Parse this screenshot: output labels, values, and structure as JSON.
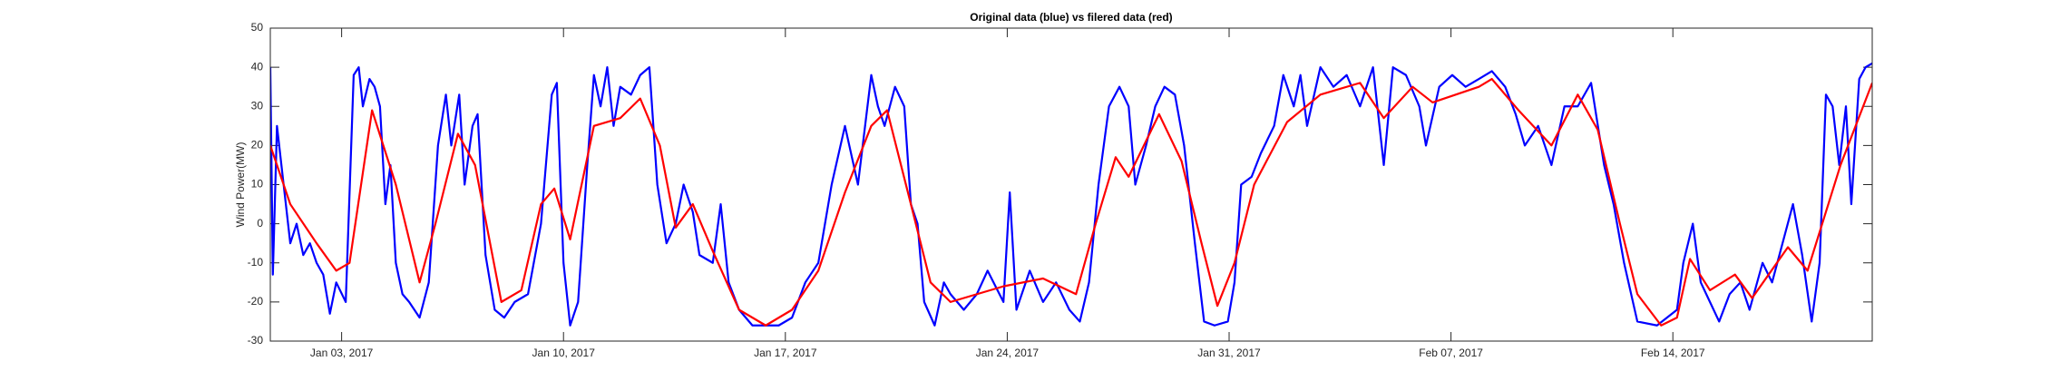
{
  "chart_data": {
    "type": "line",
    "title": "Original data (blue) vs filered data (red)",
    "y_label": "Wind Power(MW)",
    "xlim": [
      -0.25,
      50.29
    ],
    "xticks": [
      {
        "value": 2,
        "label": "Jan 03, 2017"
      },
      {
        "value": 9,
        "label": "Jan 10, 2017"
      },
      {
        "value": 16,
        "label": "Jan 17, 2017"
      },
      {
        "value": 23,
        "label": "Jan 24, 2017"
      },
      {
        "value": 30,
        "label": "Jan 31, 2017"
      },
      {
        "value": 37,
        "label": "Feb 07, 2017"
      },
      {
        "value": 44,
        "label": "Feb 14, 2017"
      }
    ],
    "ylim": [
      -30,
      50
    ],
    "yticks": [
      -30,
      -20,
      -10,
      0,
      10,
      20,
      30,
      40,
      50
    ],
    "grid": false,
    "series": [
      {
        "name": "Original data",
        "color": "#0000ff",
        "x": [
          -0.25,
          -0.17,
          -0.04,
          0.17,
          0.38,
          0.58,
          0.79,
          1.0,
          1.21,
          1.42,
          1.63,
          1.83,
          2.13,
          2.38,
          2.54,
          2.67,
          2.88,
          3.04,
          3.21,
          3.38,
          3.54,
          3.71,
          3.92,
          4.13,
          4.46,
          4.75,
          5.04,
          5.29,
          5.46,
          5.71,
          5.88,
          6.13,
          6.29,
          6.54,
          6.83,
          7.13,
          7.46,
          7.88,
          8.29,
          8.63,
          8.79,
          9.0,
          9.21,
          9.46,
          9.75,
          9.96,
          10.17,
          10.38,
          10.58,
          10.79,
          11.13,
          11.42,
          11.71,
          11.96,
          12.25,
          12.54,
          12.79,
          13.08,
          13.29,
          13.71,
          13.96,
          14.21,
          14.54,
          14.96,
          15.79,
          16.21,
          16.63,
          17.04,
          17.46,
          17.88,
          18.29,
          18.71,
          18.92,
          19.13,
          19.46,
          19.75,
          19.96,
          20.17,
          20.38,
          20.71,
          21.0,
          21.21,
          21.63,
          22.04,
          22.38,
          22.88,
          23.08,
          23.29,
          23.71,
          24.13,
          24.54,
          24.96,
          25.29,
          25.58,
          25.88,
          26.21,
          26.54,
          26.83,
          27.04,
          27.38,
          27.67,
          27.96,
          28.29,
          28.58,
          28.92,
          29.21,
          29.54,
          29.96,
          30.17,
          30.38,
          30.71,
          31.0,
          31.42,
          31.71,
          32.04,
          32.25,
          32.46,
          32.88,
          33.29,
          33.71,
          34.13,
          34.54,
          34.88,
          35.17,
          35.58,
          36.0,
          36.21,
          36.63,
          37.04,
          37.46,
          37.88,
          38.29,
          38.71,
          39.04,
          39.33,
          39.75,
          40.17,
          40.58,
          41.0,
          41.42,
          41.83,
          42.13,
          42.46,
          42.88,
          43.5,
          44.13,
          44.33,
          44.63,
          44.88,
          45.17,
          45.46,
          45.79,
          46.13,
          46.42,
          46.83,
          47.13,
          47.46,
          47.79,
          48.08,
          48.38,
          48.63,
          48.83,
          49.04,
          49.25,
          49.46,
          49.63,
          49.88,
          50.08,
          50.29
        ],
        "values": [
          40,
          -13,
          25,
          10,
          -5,
          0,
          -8,
          -5,
          -10,
          -13,
          -23,
          -15,
          -20,
          38,
          40,
          30,
          37,
          35,
          30,
          5,
          15,
          -10,
          -18,
          -20,
          -24,
          -15,
          20,
          33,
          20,
          33,
          10,
          25,
          28,
          -8,
          -22,
          -24,
          -20,
          -18,
          0,
          33,
          36,
          -10,
          -26,
          -20,
          15,
          38,
          30,
          40,
          25,
          35,
          33,
          38,
          40,
          10,
          -5,
          0,
          10,
          3,
          -8,
          -10,
          5,
          -15,
          -22,
          -26,
          -26,
          -24,
          -15,
          -10,
          10,
          25,
          10,
          38,
          30,
          25,
          35,
          30,
          5,
          0,
          -20,
          -26,
          -15,
          -18,
          -22,
          -18,
          -12,
          -20,
          8,
          -22,
          -12,
          -20,
          -15,
          -22,
          -25,
          -15,
          10,
          30,
          35,
          30,
          10,
          20,
          30,
          35,
          33,
          20,
          -5,
          -25,
          -26,
          -25,
          -15,
          10,
          12,
          18,
          25,
          38,
          30,
          38,
          25,
          40,
          35,
          38,
          30,
          40,
          15,
          40,
          38,
          30,
          20,
          35,
          38,
          35,
          37,
          39,
          35,
          28,
          20,
          25,
          15,
          30,
          30,
          36,
          15,
          5,
          -10,
          -25,
          -26,
          -22,
          -10,
          0,
          -15,
          -20,
          -25,
          -18,
          -15,
          -22,
          -10,
          -15,
          -5,
          5,
          -8,
          -25,
          -10,
          33,
          30,
          15,
          30,
          5,
          37,
          40,
          41
        ]
      },
      {
        "name": "Filtered data",
        "color": "#ff0000",
        "x": [
          -0.25,
          0.38,
          1.21,
          1.83,
          2.25,
          2.96,
          3.71,
          4.46,
          4.96,
          5.67,
          6.21,
          7.04,
          7.67,
          8.29,
          8.71,
          9.21,
          9.96,
          10.79,
          11.42,
          12.04,
          12.54,
          13.08,
          13.71,
          14.54,
          15.38,
          16.21,
          17.04,
          17.88,
          18.71,
          19.21,
          19.96,
          20.58,
          21.21,
          22.88,
          24.13,
          25.17,
          25.79,
          26.42,
          26.83,
          27.79,
          28.5,
          29.13,
          29.63,
          30.17,
          30.79,
          31.83,
          32.88,
          34.13,
          34.88,
          35.79,
          36.42,
          37.88,
          38.29,
          39.13,
          40.17,
          41.0,
          41.63,
          42.33,
          42.88,
          43.63,
          44.13,
          44.54,
          45.17,
          45.96,
          46.5,
          47.63,
          48.25,
          49.29,
          50.29
        ],
        "values": [
          20,
          5,
          -5,
          -12,
          -10,
          29,
          10,
          -15,
          0,
          23,
          15,
          -20,
          -17,
          5,
          9,
          -4,
          25,
          27,
          32,
          20,
          -1,
          5,
          -7,
          -22,
          -26,
          -22,
          -12,
          8,
          25,
          29,
          5,
          -15,
          -20,
          -16,
          -14,
          -18,
          0,
          17,
          12,
          28,
          16,
          -5,
          -21,
          -10,
          10,
          26,
          33,
          36,
          27,
          35,
          31,
          35,
          37,
          29,
          20,
          33,
          24,
          0,
          -18,
          -26,
          -24,
          -9,
          -17,
          -13,
          -19,
          -6,
          -12,
          15,
          36
        ]
      }
    ]
  }
}
